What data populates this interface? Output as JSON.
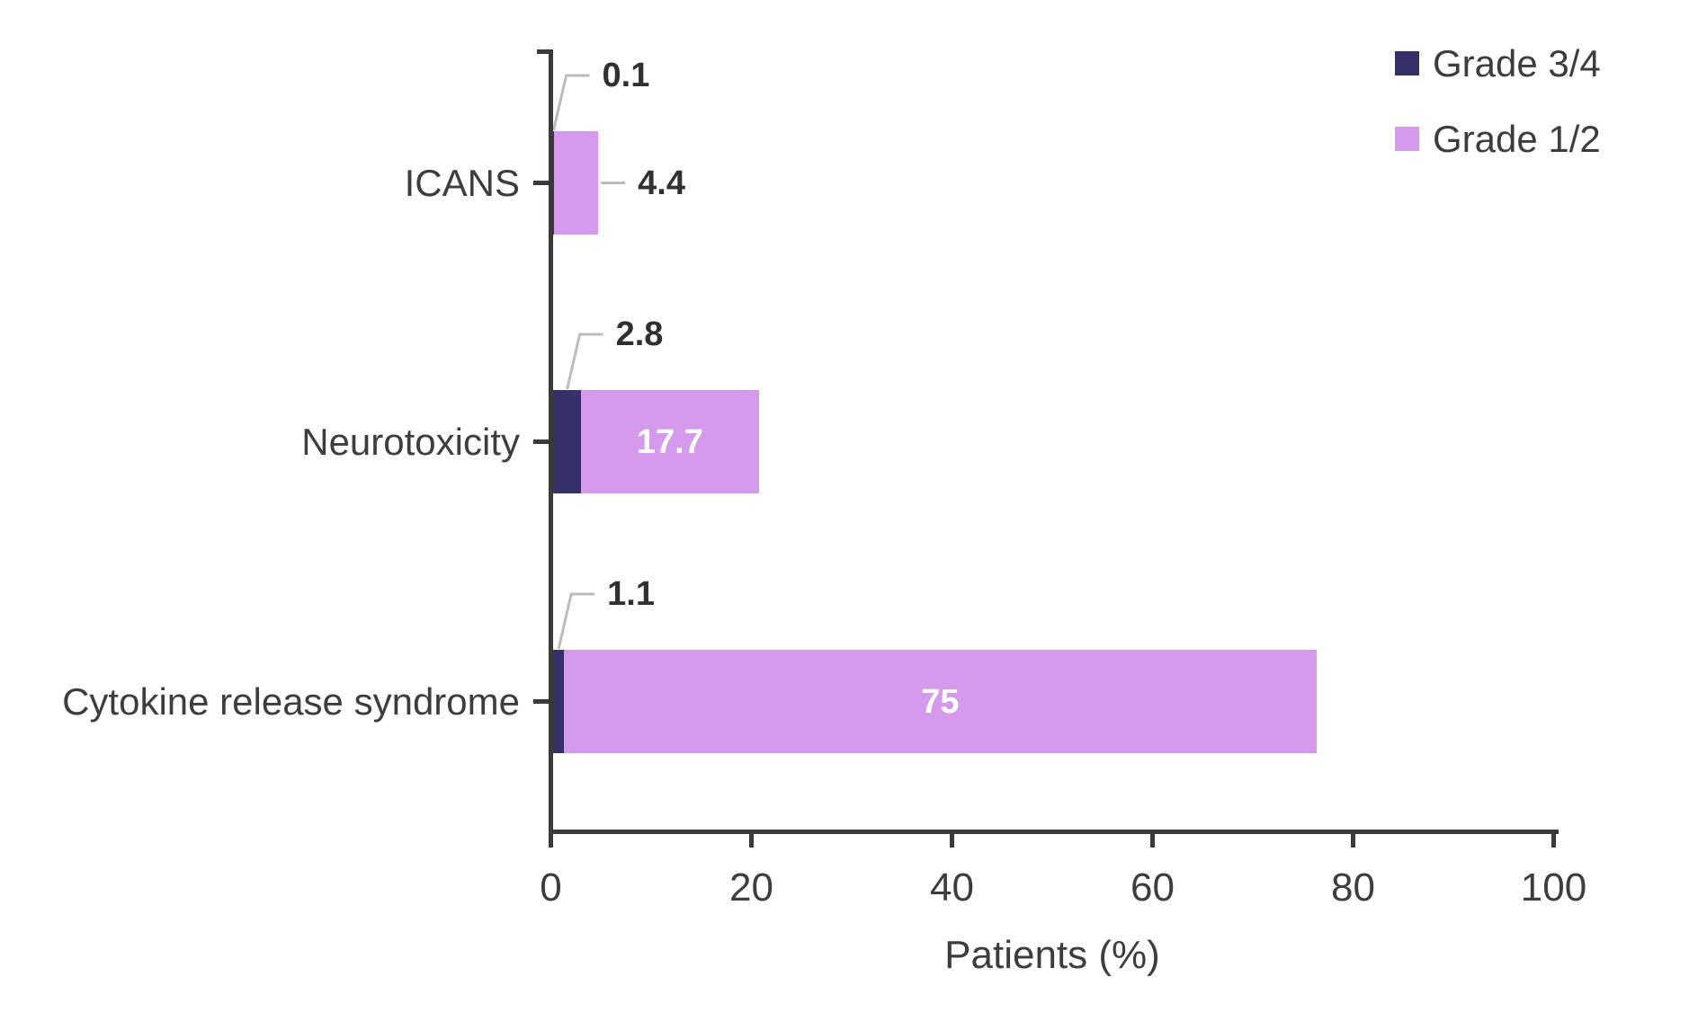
{
  "chart_data": {
    "type": "bar",
    "orientation": "horizontal",
    "stacked": true,
    "title": "",
    "categories": [
      "ICANS",
      "Neurotoxicity",
      "Cytokine release syndrome"
    ],
    "series": [
      {
        "name": "Grade 3/4",
        "color": "#363069",
        "values": [
          0.1,
          2.8,
          1.1
        ]
      },
      {
        "name": "Grade 1/2",
        "color": "#d59aec",
        "values": [
          4.4,
          17.7,
          75
        ]
      }
    ],
    "value_labels": {
      "grade_3_4": [
        "0.1",
        "2.8",
        "1.1"
      ],
      "grade_1_2": [
        "4.4",
        "17.7",
        "75"
      ]
    },
    "xlabel": "Patients (%)",
    "xlim": [
      0,
      100
    ],
    "xticks": [
      0,
      20,
      40,
      60,
      80,
      100
    ],
    "grid": false,
    "legend_position": "top-right",
    "legend_entries": [
      "Grade 3/4",
      "Grade 1/2"
    ],
    "colors": {
      "grade_3_4": "#363069",
      "grade_1_2": "#d59aec",
      "axis": "#3a3a3a",
      "text": "#3d3d3d",
      "value_text": "#303030",
      "value_text_inside": "#ffffff",
      "leader_line": "#bcbcbc"
    }
  }
}
